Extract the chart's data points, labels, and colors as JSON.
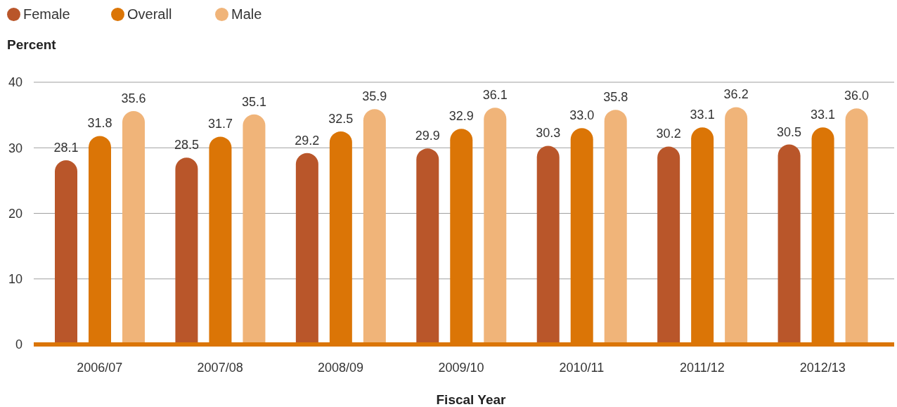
{
  "chart_data": {
    "type": "bar",
    "xlabel": "Fiscal Year",
    "ylabel": "Percent",
    "categories": [
      "2006/07",
      "2007/08",
      "2008/09",
      "2009/10",
      "2010/11",
      "2011/12",
      "2012/13"
    ],
    "series": [
      {
        "name": "Female",
        "color": "#b9562a",
        "values": [
          28.1,
          28.5,
          29.2,
          29.9,
          30.3,
          30.2,
          30.5
        ],
        "value_labels": [
          "28.1",
          "28.5",
          "29.2",
          "29.9",
          "30.3",
          "30.2",
          "30.5"
        ]
      },
      {
        "name": "Overall",
        "color": "#db7506",
        "values": [
          31.8,
          31.7,
          32.5,
          32.9,
          33.0,
          33.1,
          33.1
        ],
        "value_labels": [
          "31.8",
          "31.7",
          "32.5",
          "32.9",
          "33.0",
          "33.1",
          "33.1"
        ]
      },
      {
        "name": "Male",
        "color": "#f0b479",
        "values": [
          35.6,
          35.1,
          35.9,
          36.1,
          35.8,
          36.2,
          36.0
        ],
        "value_labels": [
          "35.6",
          "35.1",
          "35.9",
          "36.1",
          "35.8",
          "36.2",
          "36.0"
        ]
      }
    ],
    "ylim": [
      0,
      40
    ],
    "yticks": [
      0,
      10,
      20,
      30,
      40
    ],
    "grid": "y",
    "legend": "top left"
  }
}
